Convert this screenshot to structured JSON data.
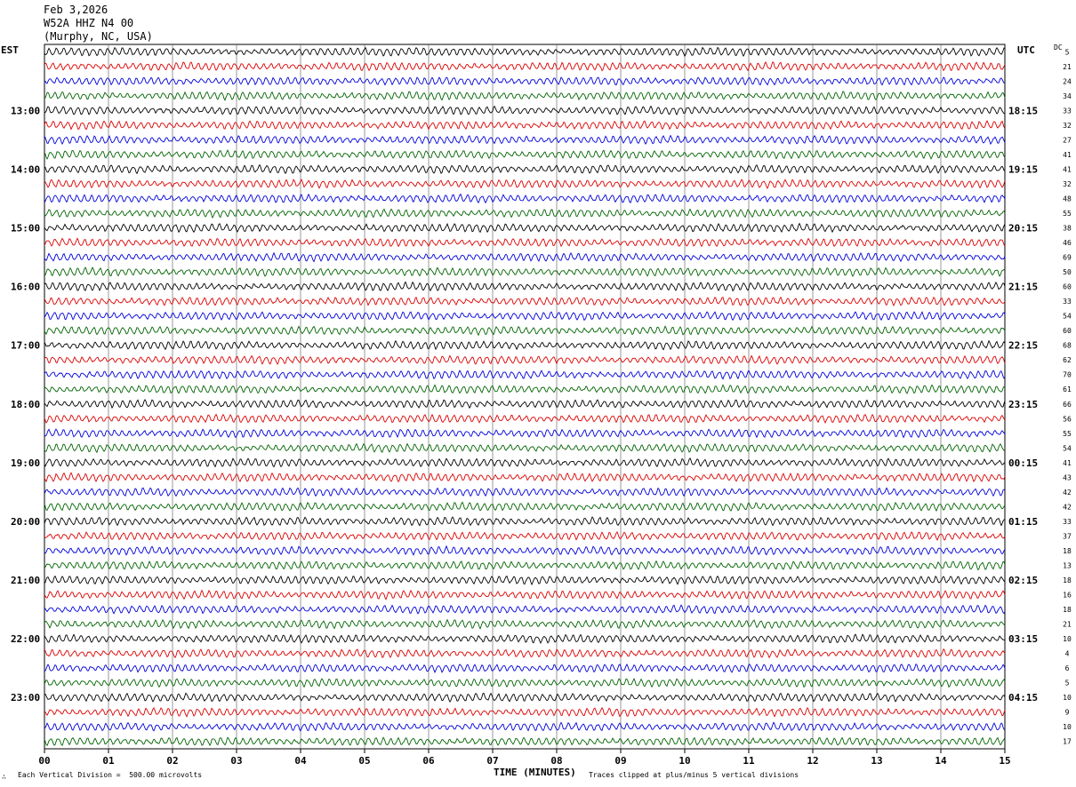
{
  "header": {
    "date": "Feb 3,2026",
    "station": "W52A HHZ N4 00",
    "location": "(Murphy, NC, USA)"
  },
  "left_zone_label": "EST",
  "right_zone_label": "UTC",
  "dc_label": "DC",
  "footer": {
    "scale_note": "Each Vertical Division =  500.00 microvolts",
    "clip_note": "Traces clipped at plus/minus 5 vertical divisions",
    "corner_mark": "∴"
  },
  "chart_data": {
    "type": "line",
    "title": "",
    "xlabel": "TIME (MINUTES)",
    "ylabel": "",
    "xlim": [
      0,
      15
    ],
    "x_tick_labels": [
      "00",
      "01",
      "02",
      "03",
      "04",
      "05",
      "06",
      "07",
      "08",
      "09",
      "10",
      "11",
      "12",
      "13",
      "14",
      "15"
    ],
    "trace_colors": [
      "#000000",
      "#dd0000",
      "#0000dd",
      "#006400"
    ],
    "rows_per_hour": 4,
    "row_count": 48,
    "est_hour_labels": [
      "13:00",
      "14:00",
      "15:00",
      "16:00",
      "17:00",
      "18:00",
      "19:00",
      "20:00",
      "21:00",
      "22:00",
      "23:00"
    ],
    "utc_hour_labels": [
      "18:15",
      "19:15",
      "20:15",
      "21:15",
      "22:15",
      "23:15",
      "00:15",
      "01:15",
      "02:15",
      "03:15",
      "04:15"
    ],
    "dc_offsets": [
      5,
      21,
      24,
      34,
      33,
      32,
      27,
      41,
      41,
      32,
      48,
      55,
      38,
      46,
      69,
      50,
      60,
      33,
      54,
      60,
      68,
      62,
      70,
      61,
      66,
      56,
      55,
      54,
      41,
      43,
      42,
      42,
      33,
      37,
      18,
      13,
      18,
      16,
      18,
      21,
      10,
      4,
      6,
      5,
      10,
      9,
      10,
      17
    ]
  }
}
